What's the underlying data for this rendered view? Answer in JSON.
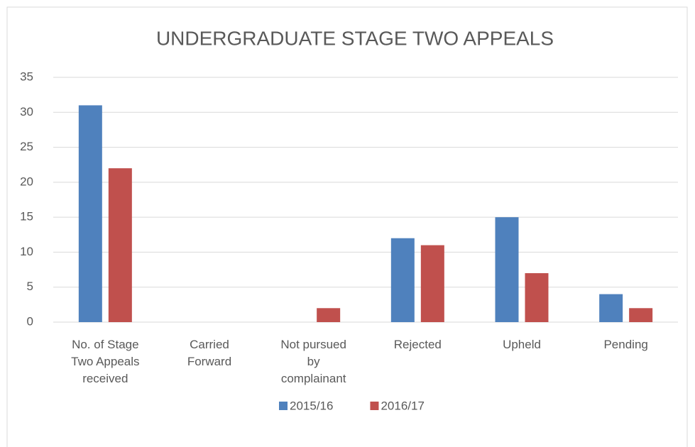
{
  "chart_data": {
    "type": "bar",
    "title": "UNDERGRADUATE STAGE TWO APPEALS",
    "categories": [
      "No. of Stage Two Appeals received",
      "Carried Forward",
      "Not pursued by complainant",
      "Rejected",
      "Upheld",
      "Pending"
    ],
    "series": [
      {
        "name": "2015/16",
        "color": "#4f81bd",
        "values": [
          31,
          0,
          0,
          12,
          15,
          4
        ]
      },
      {
        "name": "2016/17",
        "color": "#c0504d",
        "values": [
          22,
          0,
          2,
          11,
          7,
          2
        ]
      }
    ],
    "ylim": [
      0,
      35
    ],
    "yticks": [
      0,
      5,
      10,
      15,
      20,
      25,
      30,
      35
    ],
    "grid": true,
    "legend": "bottom"
  }
}
